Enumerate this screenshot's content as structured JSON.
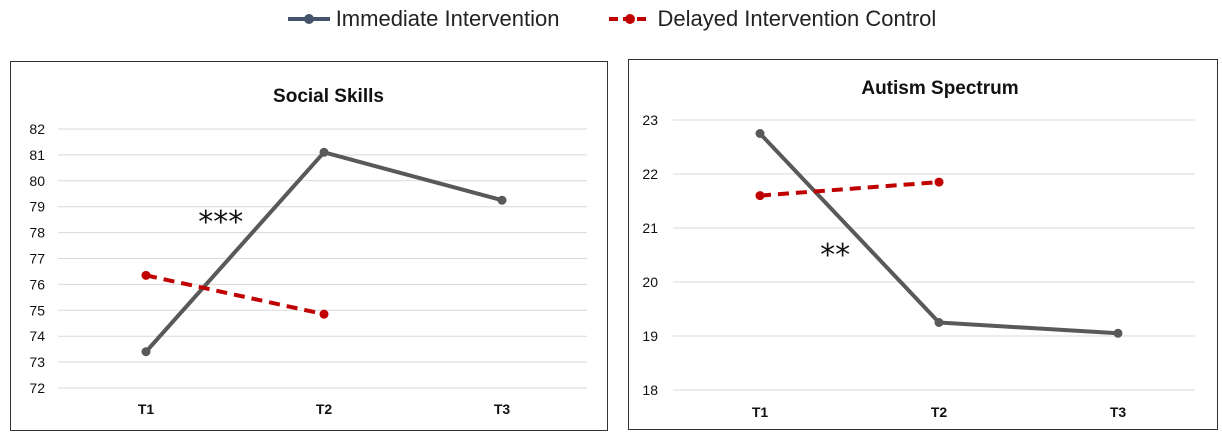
{
  "legend": {
    "items": [
      {
        "label": "Immediate Intervention",
        "color": "#595959",
        "style": "solid"
      },
      {
        "label": "Delayed Intervention Control",
        "color": "#c00000",
        "style": "dashed"
      }
    ]
  },
  "chart_data": [
    {
      "type": "line",
      "title": "Social Skills",
      "categories": [
        "T1",
        "T2",
        "T3"
      ],
      "ylim": [
        72,
        82
      ],
      "yticks": [
        72,
        73,
        74,
        75,
        76,
        77,
        78,
        79,
        80,
        81,
        82
      ],
      "grid": true,
      "series": [
        {
          "name": "Immediate Intervention",
          "color": "#595959",
          "values": [
            73.4,
            81.1,
            79.25
          ]
        },
        {
          "name": "Delayed Intervention Control",
          "color": "#c00000",
          "values": [
            76.35,
            74.85,
            null
          ]
        }
      ],
      "annotation": {
        "text": "***",
        "x": "T1",
        "xoffset": 0.42,
        "y": 78.4
      }
    },
    {
      "type": "line",
      "title": "Autism Spectrum",
      "categories": [
        "T1",
        "T2",
        "T3"
      ],
      "ylim": [
        18,
        23
      ],
      "yticks": [
        18,
        19,
        20,
        21,
        22,
        23
      ],
      "grid": true,
      "series": [
        {
          "name": "Immediate Intervention",
          "color": "#595959",
          "values": [
            22.75,
            19.25,
            19.05
          ]
        },
        {
          "name": "Delayed Intervention Control",
          "color": "#c00000",
          "values": [
            21.6,
            21.85,
            null
          ]
        }
      ],
      "annotation": {
        "text": "**",
        "x": "T1",
        "xoffset": 0.42,
        "y": 20.5
      }
    }
  ]
}
